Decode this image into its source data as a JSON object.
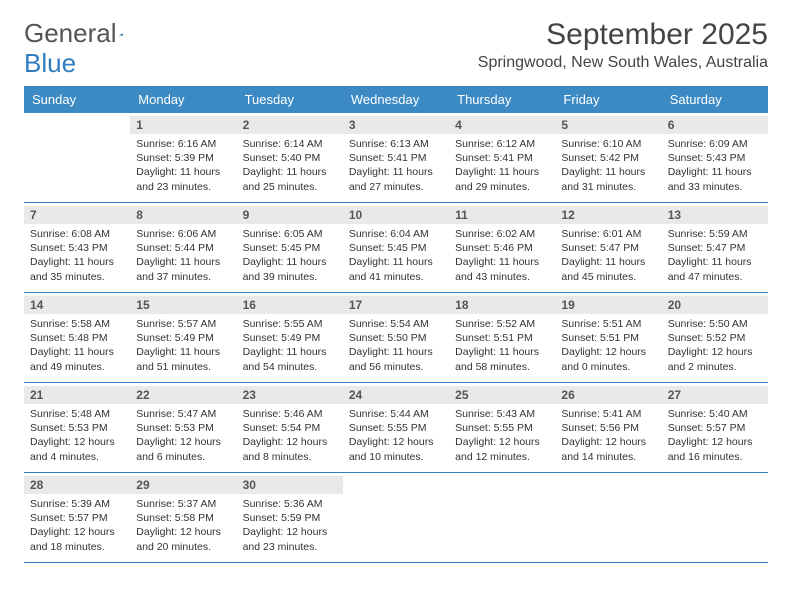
{
  "brand": {
    "part1": "General",
    "part2": "Blue"
  },
  "title": "September 2025",
  "location": "Springwood, New South Wales, Australia",
  "weekdays": [
    "Sunday",
    "Monday",
    "Tuesday",
    "Wednesday",
    "Thursday",
    "Friday",
    "Saturday"
  ],
  "accent_color": "#3b8ac4",
  "rule_color": "#2f7dc0",
  "daynum_bg": "#e9e9e9",
  "weeks": [
    [
      null,
      {
        "n": "1",
        "sr": "6:16 AM",
        "ss": "5:39 PM",
        "dl": "11 hours and 23 minutes."
      },
      {
        "n": "2",
        "sr": "6:14 AM",
        "ss": "5:40 PM",
        "dl": "11 hours and 25 minutes."
      },
      {
        "n": "3",
        "sr": "6:13 AM",
        "ss": "5:41 PM",
        "dl": "11 hours and 27 minutes."
      },
      {
        "n": "4",
        "sr": "6:12 AM",
        "ss": "5:41 PM",
        "dl": "11 hours and 29 minutes."
      },
      {
        "n": "5",
        "sr": "6:10 AM",
        "ss": "5:42 PM",
        "dl": "11 hours and 31 minutes."
      },
      {
        "n": "6",
        "sr": "6:09 AM",
        "ss": "5:43 PM",
        "dl": "11 hours and 33 minutes."
      }
    ],
    [
      {
        "n": "7",
        "sr": "6:08 AM",
        "ss": "5:43 PM",
        "dl": "11 hours and 35 minutes."
      },
      {
        "n": "8",
        "sr": "6:06 AM",
        "ss": "5:44 PM",
        "dl": "11 hours and 37 minutes."
      },
      {
        "n": "9",
        "sr": "6:05 AM",
        "ss": "5:45 PM",
        "dl": "11 hours and 39 minutes."
      },
      {
        "n": "10",
        "sr": "6:04 AM",
        "ss": "5:45 PM",
        "dl": "11 hours and 41 minutes."
      },
      {
        "n": "11",
        "sr": "6:02 AM",
        "ss": "5:46 PM",
        "dl": "11 hours and 43 minutes."
      },
      {
        "n": "12",
        "sr": "6:01 AM",
        "ss": "5:47 PM",
        "dl": "11 hours and 45 minutes."
      },
      {
        "n": "13",
        "sr": "5:59 AM",
        "ss": "5:47 PM",
        "dl": "11 hours and 47 minutes."
      }
    ],
    [
      {
        "n": "14",
        "sr": "5:58 AM",
        "ss": "5:48 PM",
        "dl": "11 hours and 49 minutes."
      },
      {
        "n": "15",
        "sr": "5:57 AM",
        "ss": "5:49 PM",
        "dl": "11 hours and 51 minutes."
      },
      {
        "n": "16",
        "sr": "5:55 AM",
        "ss": "5:49 PM",
        "dl": "11 hours and 54 minutes."
      },
      {
        "n": "17",
        "sr": "5:54 AM",
        "ss": "5:50 PM",
        "dl": "11 hours and 56 minutes."
      },
      {
        "n": "18",
        "sr": "5:52 AM",
        "ss": "5:51 PM",
        "dl": "11 hours and 58 minutes."
      },
      {
        "n": "19",
        "sr": "5:51 AM",
        "ss": "5:51 PM",
        "dl": "12 hours and 0 minutes."
      },
      {
        "n": "20",
        "sr": "5:50 AM",
        "ss": "5:52 PM",
        "dl": "12 hours and 2 minutes."
      }
    ],
    [
      {
        "n": "21",
        "sr": "5:48 AM",
        "ss": "5:53 PM",
        "dl": "12 hours and 4 minutes."
      },
      {
        "n": "22",
        "sr": "5:47 AM",
        "ss": "5:53 PM",
        "dl": "12 hours and 6 minutes."
      },
      {
        "n": "23",
        "sr": "5:46 AM",
        "ss": "5:54 PM",
        "dl": "12 hours and 8 minutes."
      },
      {
        "n": "24",
        "sr": "5:44 AM",
        "ss": "5:55 PM",
        "dl": "12 hours and 10 minutes."
      },
      {
        "n": "25",
        "sr": "5:43 AM",
        "ss": "5:55 PM",
        "dl": "12 hours and 12 minutes."
      },
      {
        "n": "26",
        "sr": "5:41 AM",
        "ss": "5:56 PM",
        "dl": "12 hours and 14 minutes."
      },
      {
        "n": "27",
        "sr": "5:40 AM",
        "ss": "5:57 PM",
        "dl": "12 hours and 16 minutes."
      }
    ],
    [
      {
        "n": "28",
        "sr": "5:39 AM",
        "ss": "5:57 PM",
        "dl": "12 hours and 18 minutes."
      },
      {
        "n": "29",
        "sr": "5:37 AM",
        "ss": "5:58 PM",
        "dl": "12 hours and 20 minutes."
      },
      {
        "n": "30",
        "sr": "5:36 AM",
        "ss": "5:59 PM",
        "dl": "12 hours and 23 minutes."
      },
      null,
      null,
      null,
      null
    ]
  ],
  "labels": {
    "sunrise": "Sunrise:",
    "sunset": "Sunset:",
    "daylight": "Daylight:"
  }
}
